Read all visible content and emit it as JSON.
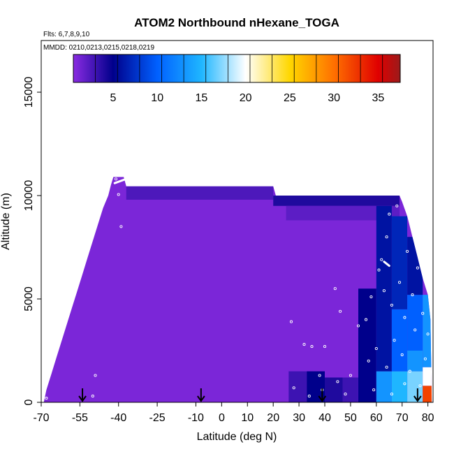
{
  "chart_data": {
    "type": "heatmap",
    "title": "ATOM2 Northbound nHexane_TOGA",
    "flights_label": "Flts: 6,7,8,9,10",
    "dates_label": "MMDD: 0210,0213,0215,0218,0219",
    "xlabel": "Latitude (deg N)",
    "ylabel": "Altitude (m)",
    "xlim": [
      -70,
      82
    ],
    "ylim": [
      0,
      17500
    ],
    "xticks": [
      -70,
      -55,
      -40,
      -25,
      -10,
      0,
      10,
      20,
      30,
      40,
      50,
      60,
      70,
      80
    ],
    "yticks": [
      0,
      5000,
      10000,
      15000
    ],
    "colorbar": {
      "min": 0.5,
      "max": 37.5,
      "ticks": [
        5,
        10,
        15,
        20,
        25,
        30,
        35
      ],
      "stops": [
        {
          "v": 0.5,
          "c": "#8a2be2"
        },
        {
          "v": 5,
          "c": "#00008b"
        },
        {
          "v": 10,
          "c": "#0060ff"
        },
        {
          "v": 15,
          "c": "#1fb6ff"
        },
        {
          "v": 20,
          "c": "#ffffff"
        },
        {
          "v": 25,
          "c": "#ffd700"
        },
        {
          "v": 30,
          "c": "#ff7000"
        },
        {
          "v": 35,
          "c": "#e00000"
        },
        {
          "v": 37.5,
          "c": "#9b1b1b"
        }
      ]
    },
    "field": {
      "profile_top": [
        [
          -69,
          0
        ],
        [
          -68,
          600
        ],
        [
          -66,
          1400
        ],
        [
          -64,
          2200
        ],
        [
          -62,
          3000
        ],
        [
          -60,
          3800
        ],
        [
          -58,
          4600
        ],
        [
          -56,
          5400
        ],
        [
          -54,
          6200
        ],
        [
          -52,
          7000
        ],
        [
          -50,
          7800
        ],
        [
          -48,
          8600
        ],
        [
          -46,
          9400
        ],
        [
          -44,
          10000
        ],
        [
          -43,
          10500
        ],
        [
          -42,
          10900
        ],
        [
          -38,
          10900
        ],
        [
          -37,
          10450
        ],
        [
          -33,
          10450
        ],
        [
          -10,
          10450
        ],
        [
          20,
          10450
        ],
        [
          21,
          10000
        ],
        [
          40,
          10000
        ],
        [
          60,
          10000
        ],
        [
          69,
          10000
        ],
        [
          70,
          9700
        ],
        [
          72,
          9000
        ],
        [
          74,
          8000
        ],
        [
          76,
          7000
        ],
        [
          78,
          6000
        ],
        [
          80,
          5200
        ],
        [
          81,
          4000
        ],
        [
          81.5,
          0
        ]
      ],
      "background_value": 1,
      "patches": [
        {
          "lat": [
            -37,
            20
          ],
          "alt": [
            9800,
            10450
          ],
          "value": 2.5
        },
        {
          "lat": [
            20,
            69
          ],
          "alt": [
            9500,
            10000
          ],
          "value": 4
        },
        {
          "lat": [
            25,
            69
          ],
          "alt": [
            8800,
            9500
          ],
          "value": 2
        },
        {
          "lat": [
            26,
            33
          ],
          "alt": [
            0,
            1500
          ],
          "value": 3
        },
        {
          "lat": [
            33,
            40
          ],
          "alt": [
            0,
            1500
          ],
          "value": 5
        },
        {
          "lat": [
            40,
            47
          ],
          "alt": [
            0,
            1200
          ],
          "value": 4
        },
        {
          "lat": [
            47,
            53
          ],
          "alt": [
            0,
            1200
          ],
          "value": 3
        },
        {
          "lat": [
            53,
            60
          ],
          "alt": [
            0,
            5500
          ],
          "value": 5
        },
        {
          "lat": [
            60,
            66
          ],
          "alt": [
            0,
            1500
          ],
          "value": 13
        },
        {
          "lat": [
            60,
            66
          ],
          "alt": [
            1500,
            9500
          ],
          "value": 6
        },
        {
          "lat": [
            66,
            72
          ],
          "alt": [
            0,
            1500
          ],
          "value": 15
        },
        {
          "lat": [
            66,
            72
          ],
          "alt": [
            1500,
            4500
          ],
          "value": 10
        },
        {
          "lat": [
            66,
            72
          ],
          "alt": [
            4500,
            9000
          ],
          "value": 7
        },
        {
          "lat": [
            72,
            78
          ],
          "alt": [
            0,
            1500
          ],
          "value": 17
        },
        {
          "lat": [
            72,
            78
          ],
          "alt": [
            1500,
            2500
          ],
          "value": 13
        },
        {
          "lat": [
            72,
            78
          ],
          "alt": [
            2500,
            5200
          ],
          "value": 10
        },
        {
          "lat": [
            72,
            78
          ],
          "alt": [
            5200,
            8000
          ],
          "value": 6
        },
        {
          "lat": [
            78,
            81.5
          ],
          "alt": [
            0,
            800
          ],
          "value": 32
        },
        {
          "lat": [
            78,
            81.5
          ],
          "alt": [
            800,
            1700
          ],
          "value": 20
        },
        {
          "lat": [
            78,
            81.5
          ],
          "alt": [
            1700,
            5200
          ],
          "value": 13
        }
      ]
    },
    "flight_arrows_lat": [
      -54,
      -8,
      39,
      76
    ],
    "sample_points": [
      {
        "lat": -68,
        "alt": 200
      },
      {
        "lat": -50,
        "alt": 300
      },
      {
        "lat": -49,
        "alt": 1300
      },
      {
        "lat": -41,
        "alt": 10800
      },
      {
        "lat": -40,
        "alt": 10050
      },
      {
        "lat": -39,
        "alt": 8500
      },
      {
        "lat": 27,
        "alt": 3900
      },
      {
        "lat": 32,
        "alt": 2800
      },
      {
        "lat": 35,
        "alt": 2700
      },
      {
        "lat": 28,
        "alt": 700
      },
      {
        "lat": 34,
        "alt": 300
      },
      {
        "lat": 38,
        "alt": 1300
      },
      {
        "lat": 39,
        "alt": 600
      },
      {
        "lat": 40,
        "alt": 2700
      },
      {
        "lat": 44,
        "alt": 5500
      },
      {
        "lat": 45,
        "alt": 1000
      },
      {
        "lat": 46,
        "alt": 4400
      },
      {
        "lat": 48,
        "alt": 400
      },
      {
        "lat": 50,
        "alt": 1300
      },
      {
        "lat": 53,
        "alt": 3700
      },
      {
        "lat": 56,
        "alt": 4000
      },
      {
        "lat": 57,
        "alt": 2000
      },
      {
        "lat": 58,
        "alt": 5100
      },
      {
        "lat": 59,
        "alt": 600
      },
      {
        "lat": 60,
        "alt": 2600
      },
      {
        "lat": 61,
        "alt": 6400
      },
      {
        "lat": 62,
        "alt": 6900
      },
      {
        "lat": 63,
        "alt": 5400
      },
      {
        "lat": 64,
        "alt": 8000
      },
      {
        "lat": 65,
        "alt": 9100
      },
      {
        "lat": 66,
        "alt": 4700
      },
      {
        "lat": 67,
        "alt": 3000
      },
      {
        "lat": 68,
        "alt": 9500
      },
      {
        "lat": 69,
        "alt": 5800
      },
      {
        "lat": 70,
        "alt": 2300
      },
      {
        "lat": 71,
        "alt": 4100
      },
      {
        "lat": 72,
        "alt": 7300
      },
      {
        "lat": 73,
        "alt": 1500
      },
      {
        "lat": 74,
        "alt": 5200
      },
      {
        "lat": 75,
        "alt": 3500
      },
      {
        "lat": 76,
        "alt": 6500
      },
      {
        "lat": 77,
        "alt": 800
      },
      {
        "lat": 78,
        "alt": 4300
      },
      {
        "lat": 79,
        "alt": 2100
      },
      {
        "lat": 80,
        "alt": 3300
      },
      {
        "lat": 64,
        "alt": 1700
      },
      {
        "lat": 66,
        "alt": 400
      },
      {
        "lat": 71,
        "alt": 900
      }
    ],
    "flight_segments": [
      {
        "lat": [
          -41.5,
          -36
        ],
        "alt": [
          10600,
          10850
        ]
      },
      {
        "lat": [
          63,
          65
        ],
        "alt": [
          6800,
          6600
        ]
      }
    ]
  }
}
